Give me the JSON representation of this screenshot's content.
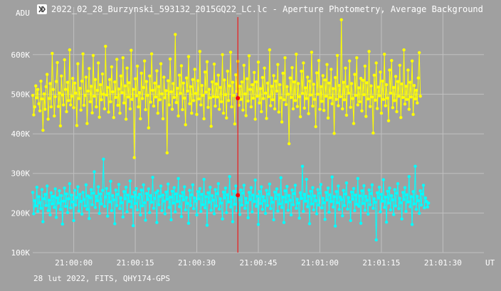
{
  "window": {
    "title": "2022_02_28_Burzynski_593132_2015GQ22_LC.lc - Aperture Photometry, Average Background",
    "icon": "app-logo-icon"
  },
  "footer": {
    "info": "28 lut 2022, FITS, QHY174-GPS"
  },
  "colors": {
    "background": "#a0a0a0",
    "grid": "#c0c0c0",
    "series_1": "#ffff00",
    "series_2": "#00ffff",
    "cursor": "#ff0000"
  },
  "chart_data": {
    "type": "line",
    "ylabel": "ADU",
    "xlabel": "UT",
    "ylim": [
      100000,
      720000
    ],
    "xlim": [
      "20:59:50",
      "21:01:40"
    ],
    "grid": true,
    "y_ticks": [
      "100K",
      "200K",
      "300K",
      "400K",
      "500K",
      "600K"
    ],
    "y_tick_values": [
      100000,
      200000,
      300000,
      400000,
      500000,
      600000
    ],
    "x_ticks": [
      "21:00:00",
      "21:00:15",
      "21:00:30",
      "21:00:45",
      "21:01:00",
      "21:01:15",
      "21:01:30"
    ],
    "cursor": {
      "x": "21:00:40",
      "values": [
        490000,
        245000
      ]
    },
    "series": [
      {
        "color": "#ffff00",
        "x_start": "20:59:50",
        "step_seconds": 0.25,
        "values": [
          497000,
          448000,
          468000,
          521000,
          491000,
          512000,
          476000,
          458000,
          533000,
          488000,
          409000,
          501000,
          462000,
          519000,
          550000,
          437000,
          489000,
          527000,
          468000,
          603000,
          512000,
          445000,
          494000,
          532000,
          580000,
          469000,
          503000,
          420000,
          546000,
          498000,
          473000,
          587000,
          512000,
          456000,
          530000,
          484000,
          612000,
          473000,
          495000,
          540000,
          466000,
          528000,
          503000,
          421000,
          577000,
          489000,
          515000,
          460000,
          533000,
          602000,
          472000,
          497000,
          543000,
          426000,
          508000,
          565000,
          481000,
          520000,
          453000,
          598000,
          495000,
          537000,
          468000,
          510000,
          579000,
          442000,
          524000,
          486000,
          551000,
          500000,
          463000,
          621000,
          498000,
          517000,
          455000,
          537000,
          481000,
          569000,
          506000,
          441000,
          531000,
          492000,
          588000,
          472000,
          513000,
          452000,
          546000,
          504000,
          592000,
          478000,
          521000,
          437000,
          566000,
          493000,
          529000,
          463000,
          611000,
          487000,
          512000,
          340000,
          539000,
          496000,
          571000,
          468000,
          504000,
          438000,
          553000,
          489000,
          517000,
          584000,
          461000,
          532000,
          497000,
          415000,
          546000,
          480000,
          602000,
          510000,
          470000,
          528000,
          493000,
          559000,
          452000,
          519000,
          486000,
          577000,
          501000,
          438000,
          543000,
          491000,
          509000,
          352000,
          534000,
          473000,
          589000,
          506000,
          462000,
          527000,
          492000,
          651000,
          479000,
          515000,
          445000,
          548000,
          502000,
          572000,
          461000,
          528000,
          490000,
          423000,
          541000,
          508000,
          595000,
          476000,
          519000,
          452000,
          537000,
          484000,
          563000,
          502000,
          449000,
          534000,
          488000,
          608000,
          473000,
          522000,
          497000,
          438000,
          556000,
          505000,
          582000,
          467000,
          512000,
          491000,
          419000,
          531000,
          494000,
          576000,
          470000,
          526000,
          493000,
          548000,
          462000,
          517000,
          481000,
          600000,
          452000,
          536000,
          499000,
          440000,
          558000,
          484000,
          521000,
          606000,
          468000,
          530000,
          497000,
          425000,
          549000,
          507000,
          583000,
          472000,
          520000,
          487000,
          531000,
          460000,
          573000,
          501000,
          446000,
          539000,
          483000,
          597000,
          512000,
          468000,
          524000,
          490000,
          555000,
          437000,
          531000,
          495000,
          581000,
          478000,
          514000,
          456000,
          542000,
          489000,
          566000,
          503000,
          439000,
          528000,
          494000,
          612000,
          471000,
          520000,
          486000,
          547000,
          463000,
          533000,
          508000,
          575000,
          455000,
          524000,
          491000,
          430000,
          553000,
          486000,
          592000,
          474000,
          519000,
          500000,
          375000,
          541000,
          492000,
          567000,
          463000,
          531000,
          484000,
          601000,
          469000,
          527000,
          494000,
          443000,
          558000,
          502000,
          579000,
          465000,
          516000,
          489000,
          543000,
          451000,
          533000,
          498000,
          606000,
          470000,
          525000,
          487000,
          418000,
          554000,
          500000,
          585000,
          462000,
          519000,
          482000,
          547000,
          459000,
          536000,
          495000,
          575000,
          440000,
          528000,
          491000,
          563000,
          476000,
          514000,
          401000,
          542000,
          487000,
          598000,
          471000,
          522000,
          494000,
          688000,
          463000,
          530000,
          486000,
          566000,
          447000,
          519000,
          503000,
          584000,
          467000,
          527000,
          489000,
          426000,
          550000,
          497000,
          592000,
          473000,
          516000,
          481000,
          540000,
          458000,
          535000,
          499000,
          571000,
          444000,
          529000,
          488000,
          608000,
          469000,
          521000,
          493000,
          402000,
          548000,
          485000,
          579000,
          464000,
          518000,
          496000,
          556000,
          452000,
          533000,
          487000,
          601000,
          471000,
          524000,
          490000,
          433000,
          561000,
          503000,
          585000,
          466000,
          517000,
          484000,
          545000,
          456000,
          532000,
          495000,
          573000,
          441000,
          526000,
          492000,
          612000,
          475000,
          520000,
          487000,
          561000,
          462000,
          530000,
          493000,
          584000,
          449000,
          522000,
          488000,
          510000,
          478000,
          541000,
          605000,
          495000
        ]
      },
      {
        "color": "#00ffff",
        "x_start": "20:59:50",
        "step_seconds": 0.25,
        "values": [
          252000,
          198000,
          231000,
          218000,
          265000,
          204000,
          241000,
          226000,
          212000,
          259000,
          178000,
          236000,
          247000,
          219000,
          268000,
          206000,
          232000,
          195000,
          251000,
          223000,
          242000,
          214000,
          261000,
          189000,
          238000,
          225000,
          256000,
          209000,
          244000,
          172000,
          230000,
          263000,
          217000,
          248000,
          201000,
          236000,
          274000,
          213000,
          245000,
          228000,
          181000,
          257000,
          220000,
          239000,
          266000,
          205000,
          247000,
          229000,
          197000,
          252000,
          234000,
          218000,
          271000,
          209000,
          243000,
          186000,
          238000,
          259000,
          221000,
          250000,
          304000,
          214000,
          242000,
          231000,
          266000,
          199000,
          248000,
          223000,
          257000,
          336000,
          217000,
          240000,
          262000,
          192000,
          249000,
          228000,
          280000,
          206000,
          244000,
          233000,
          173000,
          258000,
          219000,
          247000,
          272000,
          211000,
          238000,
          226000,
          190000,
          254000,
          236000,
          265000,
          203000,
          245000,
          229000,
          281000,
          215000,
          241000,
          168000,
          252000,
          224000,
          262000,
          208000,
          239000,
          247000,
          195000,
          258000,
          218000,
          271000,
          226000,
          182000,
          249000,
          234000,
          261000,
          201000,
          244000,
          227000,
          290000,
          212000,
          237000,
          251000,
          176000,
          256000,
          221000,
          242000,
          268000,
          206000,
          245000,
          230000,
          198000,
          253000,
          235000,
          273000,
          214000,
          240000,
          183000,
          255000,
          225000,
          264000,
          203000,
          248000,
          229000,
          287000,
          216000,
          243000,
          191000,
          252000,
          233000,
          266000,
          208000,
          239000,
          224000,
          174000,
          257000,
          219000,
          246000,
          271000,
          211000,
          238000,
          230000,
          195000,
          254000,
          236000,
          262000,
          204000,
          247000,
          221000,
          285000,
          213000,
          241000,
          169000,
          251000,
          227000,
          265000,
          207000,
          244000,
          232000,
          198000,
          259000,
          218000,
          249000,
          274000,
          210000,
          236000,
          225000,
          185000,
          253000,
          238000,
          263000,
          201000,
          246000,
          228000,
          292000,
          215000,
          240000,
          178000,
          255000,
          222000,
          268000,
          206000,
          243000,
          233000,
          196000,
          258000,
          220000,
          250000,
          270000,
          212000,
          237000,
          226000,
          188000,
          252000,
          234000,
          264000,
          203000,
          245000,
          229000,
          283000,
          217000,
          242000,
          171000,
          254000,
          224000,
          266000,
          209000,
          241000,
          231000,
          199000,
          257000,
          219000,
          248000,
          273000,
          211000,
          238000,
          227000,
          183000,
          253000,
          236000,
          261000,
          205000,
          246000,
          223000,
          289000,
          214000,
          240000,
          176000,
          256000,
          228000,
          267000,
          207000,
          244000,
          232000,
          195000,
          258000,
          221000,
          249000,
          270000,
          212000,
          235000,
          225000,
          187000,
          251000,
          237000,
          318000,
          204000,
          247000,
          230000,
          285000,
          216000,
          242000,
          173000,
          255000,
          223000,
          264000,
          208000,
          243000,
          231000,
          198000,
          259000,
          220000,
          250000,
          272000,
          213000,
          237000,
          226000,
          184000,
          252000,
          233000,
          263000,
          202000,
          246000,
          229000,
          291000,
          215000,
          241000,
          167000,
          254000,
          226000,
          268000,
          209000,
          240000,
          234000,
          193000,
          257000,
          219000,
          248000,
          276000,
          210000,
          239000,
          228000,
          181000,
          253000,
          235000,
          262000,
          206000,
          245000,
          222000,
          287000,
          217000,
          243000,
          174000,
          256000,
          224000,
          269000,
          207000,
          242000,
          232000,
          197000,
          258000,
          221000,
          249000,
          271000,
          212000,
          236000,
          227000,
          132000,
          251000,
          238000,
          265000,
          203000,
          247000,
          230000,
          284000,
          214000,
          240000,
          177000,
          255000,
          225000,
          263000,
          208000,
          244000,
          233000,
          196000,
          259000,
          218000,
          250000,
          274000,
          211000,
          237000,
          226000,
          185000,
          252000,
          234000,
          264000,
          204000,
          246000,
          228000,
          292000,
          216000,
          241000,
          171000,
          254000,
          223000,
          318000,
          209000,
          242000,
          231000,
          199000,
          256000,
          220000,
          248000,
          270000,
          213000,
          238000,
          229000,
          215000,
          225000
        ]
      }
    ]
  }
}
